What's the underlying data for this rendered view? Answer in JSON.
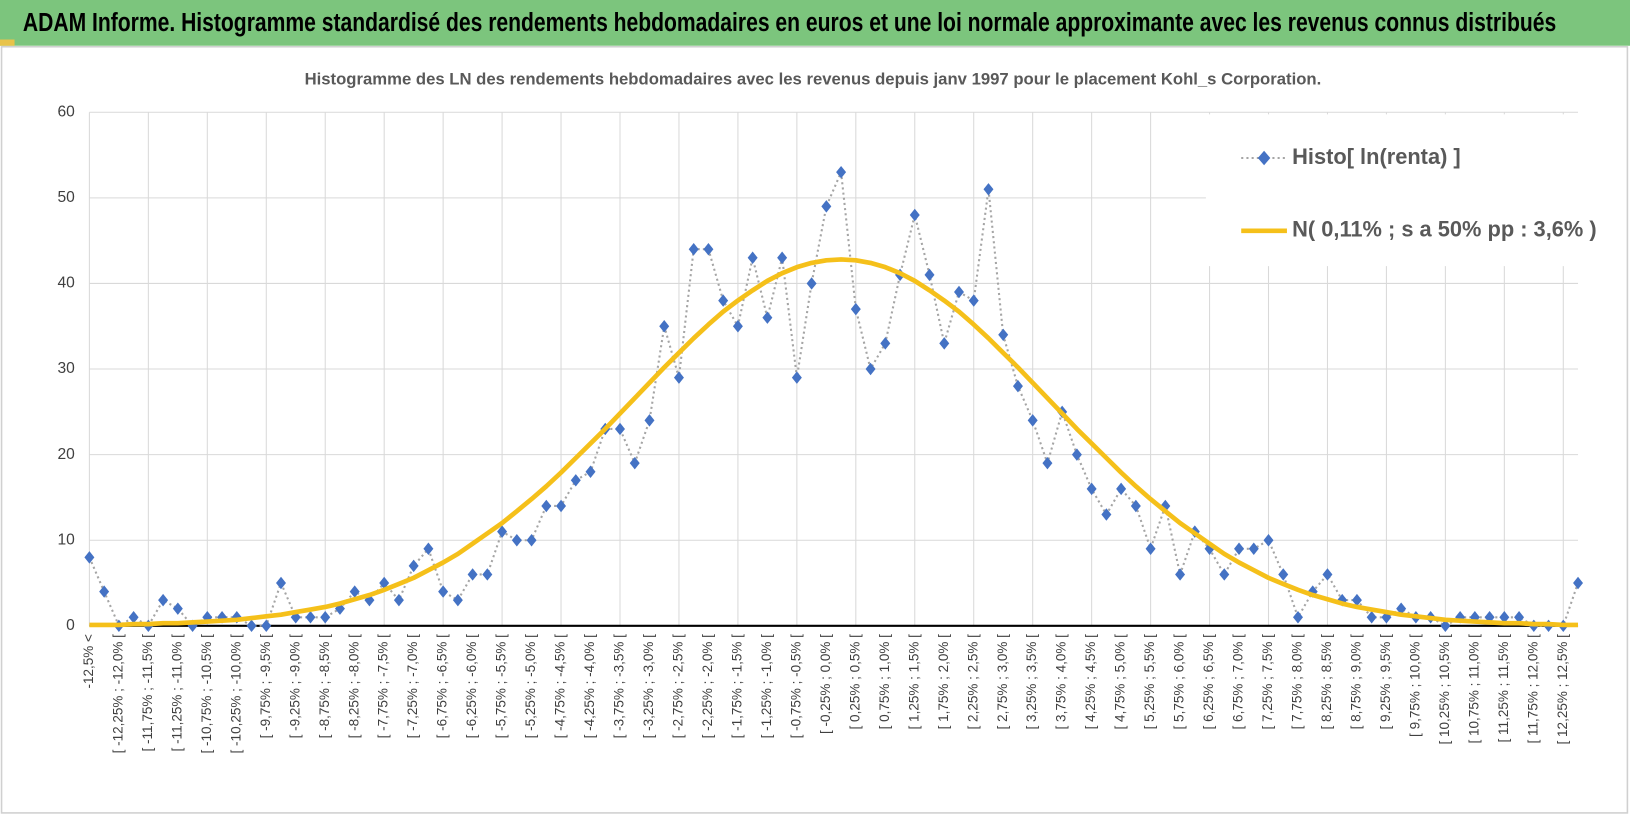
{
  "chart_data": {
    "type": "line",
    "title": "ADAM Informe. Histogramme standardisé des rendements hebdomadaires en euros et une loi normale approximante avec les revenus connus distribués",
    "subtitle": "Histogramme des LN des rendements hebdomadaires avec les revenus depuis janv 1997 pour le placement Kohl_s Corporation.",
    "categories": [
      "-12,5% <",
      null,
      "[ -12,25% ; -12,0% [",
      null,
      "[ -11,75% ; -11,5% [",
      null,
      "[ -11,25% ; -11,0% [",
      null,
      "[ -10,75% ; -10,5% [",
      null,
      "[ -10,25% ; -10,0% [",
      null,
      "[ -9,75% ; -9,5% [",
      null,
      "[ -9,25% ; -9,0% [",
      null,
      "[ -8,75% ; -8,5% [",
      null,
      "[ -8,25% ; -8,0% [",
      null,
      "[ -7,75% ; -7,5% [",
      null,
      "[ -7,25% ; -7,0% [",
      null,
      "[ -6,75% ; -6,5% [",
      null,
      "[ -6,25% ; -6,0% [",
      null,
      "[ -5,75% ; -5,5% [",
      null,
      "[ -5,25% ; -5,0% [",
      null,
      "[ -4,75% ; -4,5% [",
      null,
      "[ -4,25% ; -4,0% [",
      null,
      "[ -3,75% ; -3,5% [",
      null,
      "[ -3,25% ; -3,0% [",
      null,
      "[ -2,75% ; -2,5% [",
      null,
      "[ -2,25% ; -2,0% [",
      null,
      "[ -1,75% ; -1,5% [",
      null,
      "[ -1,25% ; -1,0% [",
      null,
      "[ -0,75% ; -0,5% [",
      null,
      "[ -0,25% ; 0,0% [",
      null,
      "[ 0,25% ; 0,5% [",
      null,
      "[ 0,75% ; 1,0% [",
      null,
      "[ 1,25% ; 1,5% [",
      null,
      "[ 1,75% ; 2,0% [",
      null,
      "[ 2,25% ; 2,5% [",
      null,
      "[ 2,75% ; 3,0% [",
      null,
      "[ 3,25% ; 3,5% [",
      null,
      "[ 3,75% ; 4,0% [",
      null,
      "[ 4,25% ; 4,5% [",
      null,
      "[ 4,75% ; 5,0% [",
      null,
      "[ 5,25% ; 5,5% [",
      null,
      "[ 5,75% ; 6,0% [",
      null,
      "[ 6,25% ; 6,5% [",
      null,
      "[ 6,75% ; 7,0% [",
      null,
      "[ 7,25% ; 7,5% [",
      null,
      "[ 7,75% ; 8,0% [",
      null,
      "[ 8,25% ; 8,5% [",
      null,
      "[ 8,75% ; 9,0% [",
      null,
      "[ 9,25% ; 9,5% [",
      null,
      "[ 9,75% ; 10,0% [",
      null,
      "[ 10,25% ; 10,5% [",
      null,
      "[ 10,75% ; 11,0% [",
      null,
      "[ 11,25% ; 11,5% [",
      null,
      "[ 11,75% ; 12,0% [",
      null,
      "[ 12,25% ; 12,5% [",
      null
    ],
    "series": [
      {
        "name": "Histo[ ln(renta) ]",
        "color": "#4472c4",
        "line_color": "#a5a5a5",
        "line_style": "dotted",
        "marker": "diamond",
        "values": [
          8,
          4,
          0,
          1,
          0,
          3,
          2,
          0,
          1,
          1,
          1,
          0,
          0,
          5,
          1,
          1,
          1,
          2,
          4,
          3,
          5,
          3,
          7,
          9,
          4,
          3,
          6,
          6,
          11,
          10,
          10,
          14,
          14,
          17,
          18,
          23,
          23,
          19,
          24,
          35,
          29,
          44,
          44,
          38,
          35,
          43,
          36,
          43,
          29,
          40,
          49,
          53,
          37,
          30,
          33,
          41,
          48,
          41,
          33,
          39,
          38,
          51,
          34,
          28,
          24,
          19,
          25,
          20,
          16,
          13,
          16,
          14,
          9,
          14,
          6,
          11,
          9,
          6,
          9,
          9,
          10,
          6,
          1,
          4,
          6,
          3,
          3,
          1,
          1,
          2,
          1,
          1,
          0,
          1,
          1,
          1,
          1,
          1,
          0,
          0,
          0,
          5
        ]
      },
      {
        "name": "N( 0,11% ; s a 50% pp : 3,6% )",
        "color": "#f5c01a",
        "line_style": "solid",
        "marker": "none",
        "values": [
          0.1,
          0.1,
          0.1,
          0.2,
          0.2,
          0.3,
          0.3,
          0.4,
          0.5,
          0.6,
          0.7,
          0.9,
          1.1,
          1.3,
          1.6,
          1.9,
          2.2,
          2.6,
          3.1,
          3.6,
          4.2,
          4.9,
          5.6,
          6.5,
          7.4,
          8.4,
          9.6,
          10.8,
          12.0,
          13.4,
          14.8,
          16.3,
          17.9,
          19.6,
          21.3,
          23.0,
          24.8,
          26.6,
          28.4,
          30.2,
          31.9,
          33.6,
          35.2,
          36.7,
          38.0,
          39.2,
          40.3,
          41.2,
          41.9,
          42.4,
          42.7,
          42.8,
          42.7,
          42.4,
          41.9,
          41.2,
          40.3,
          39.2,
          38.0,
          36.7,
          35.2,
          33.6,
          31.9,
          30.2,
          28.4,
          26.6,
          24.8,
          23.0,
          21.3,
          19.6,
          17.9,
          16.3,
          14.8,
          13.4,
          12.0,
          10.8,
          9.6,
          8.4,
          7.4,
          6.5,
          5.6,
          4.9,
          4.2,
          3.6,
          3.1,
          2.6,
          2.2,
          1.9,
          1.6,
          1.3,
          1.1,
          0.9,
          0.7,
          0.6,
          0.5,
          0.4,
          0.3,
          0.3,
          0.2,
          0.2,
          0.1,
          0.1
        ]
      }
    ],
    "ylim": [
      0,
      60
    ],
    "yticks": [
      0,
      10,
      20,
      30,
      40,
      50,
      60
    ],
    "grid": true,
    "legend": "upper right"
  }
}
